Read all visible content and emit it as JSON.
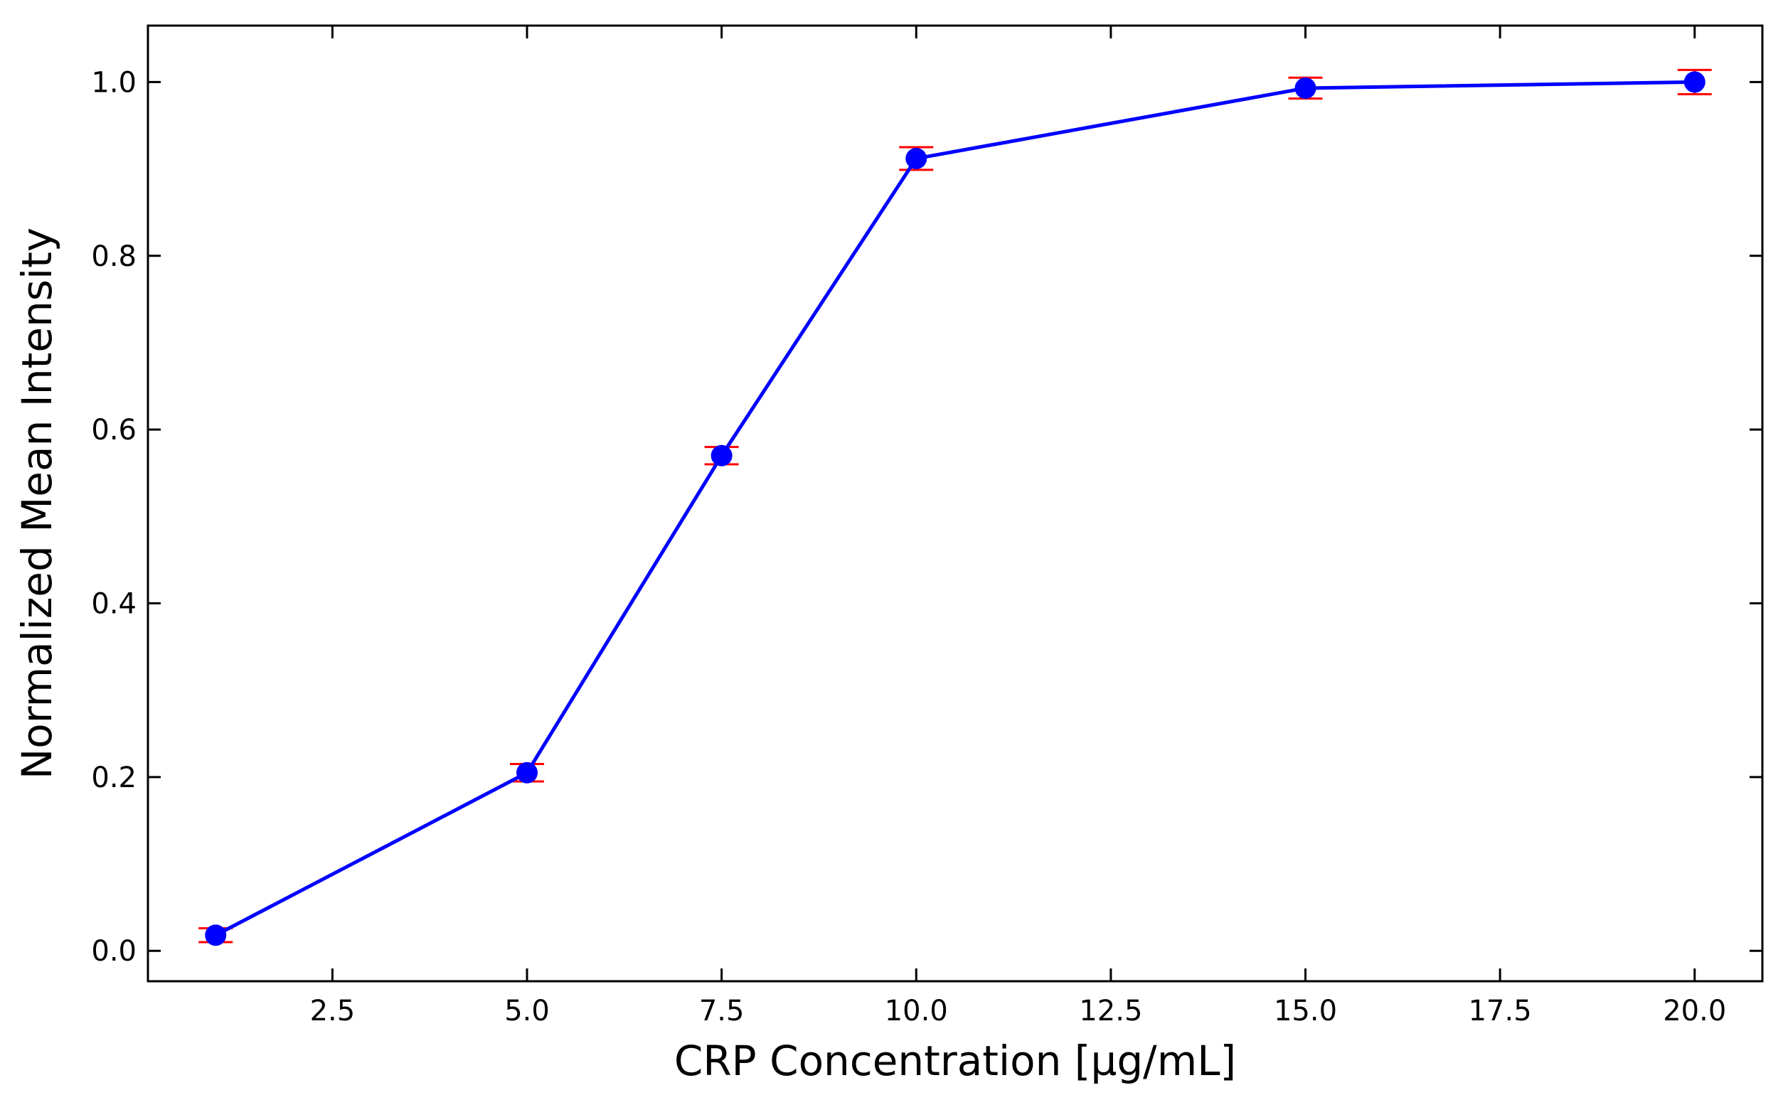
{
  "chart_data": {
    "type": "line",
    "title": "",
    "xlabel": "CRP Concentration [µg/mL]",
    "ylabel": "Normalized Mean Intensity",
    "xlim": [
      0.13,
      20.87
    ],
    "ylim": [
      -0.035,
      1.065
    ],
    "xticks": [
      2.5,
      5.0,
      7.5,
      10.0,
      12.5,
      15.0,
      17.5,
      20.0
    ],
    "xtick_labels": [
      "2.5",
      "5.0",
      "7.5",
      "10.0",
      "12.5",
      "15.0",
      "17.5",
      "20.0"
    ],
    "yticks": [
      0.0,
      0.2,
      0.4,
      0.6,
      0.8,
      1.0
    ],
    "ytick_labels": [
      "0.0",
      "0.2",
      "0.4",
      "0.6",
      "0.8",
      "1.0"
    ],
    "grid": false,
    "legend": "none",
    "series": [
      {
        "x": [
          1.0,
          5.0,
          7.5,
          10.0,
          15.0,
          20.0
        ],
        "y": [
          0.018,
          0.205,
          0.57,
          0.912,
          0.993,
          1.0
        ],
        "yerr": [
          0.008,
          0.01,
          0.01,
          0.013,
          0.012,
          0.014
        ],
        "color": "#0000ff",
        "errorbar_color": "#ff0000"
      }
    ]
  }
}
